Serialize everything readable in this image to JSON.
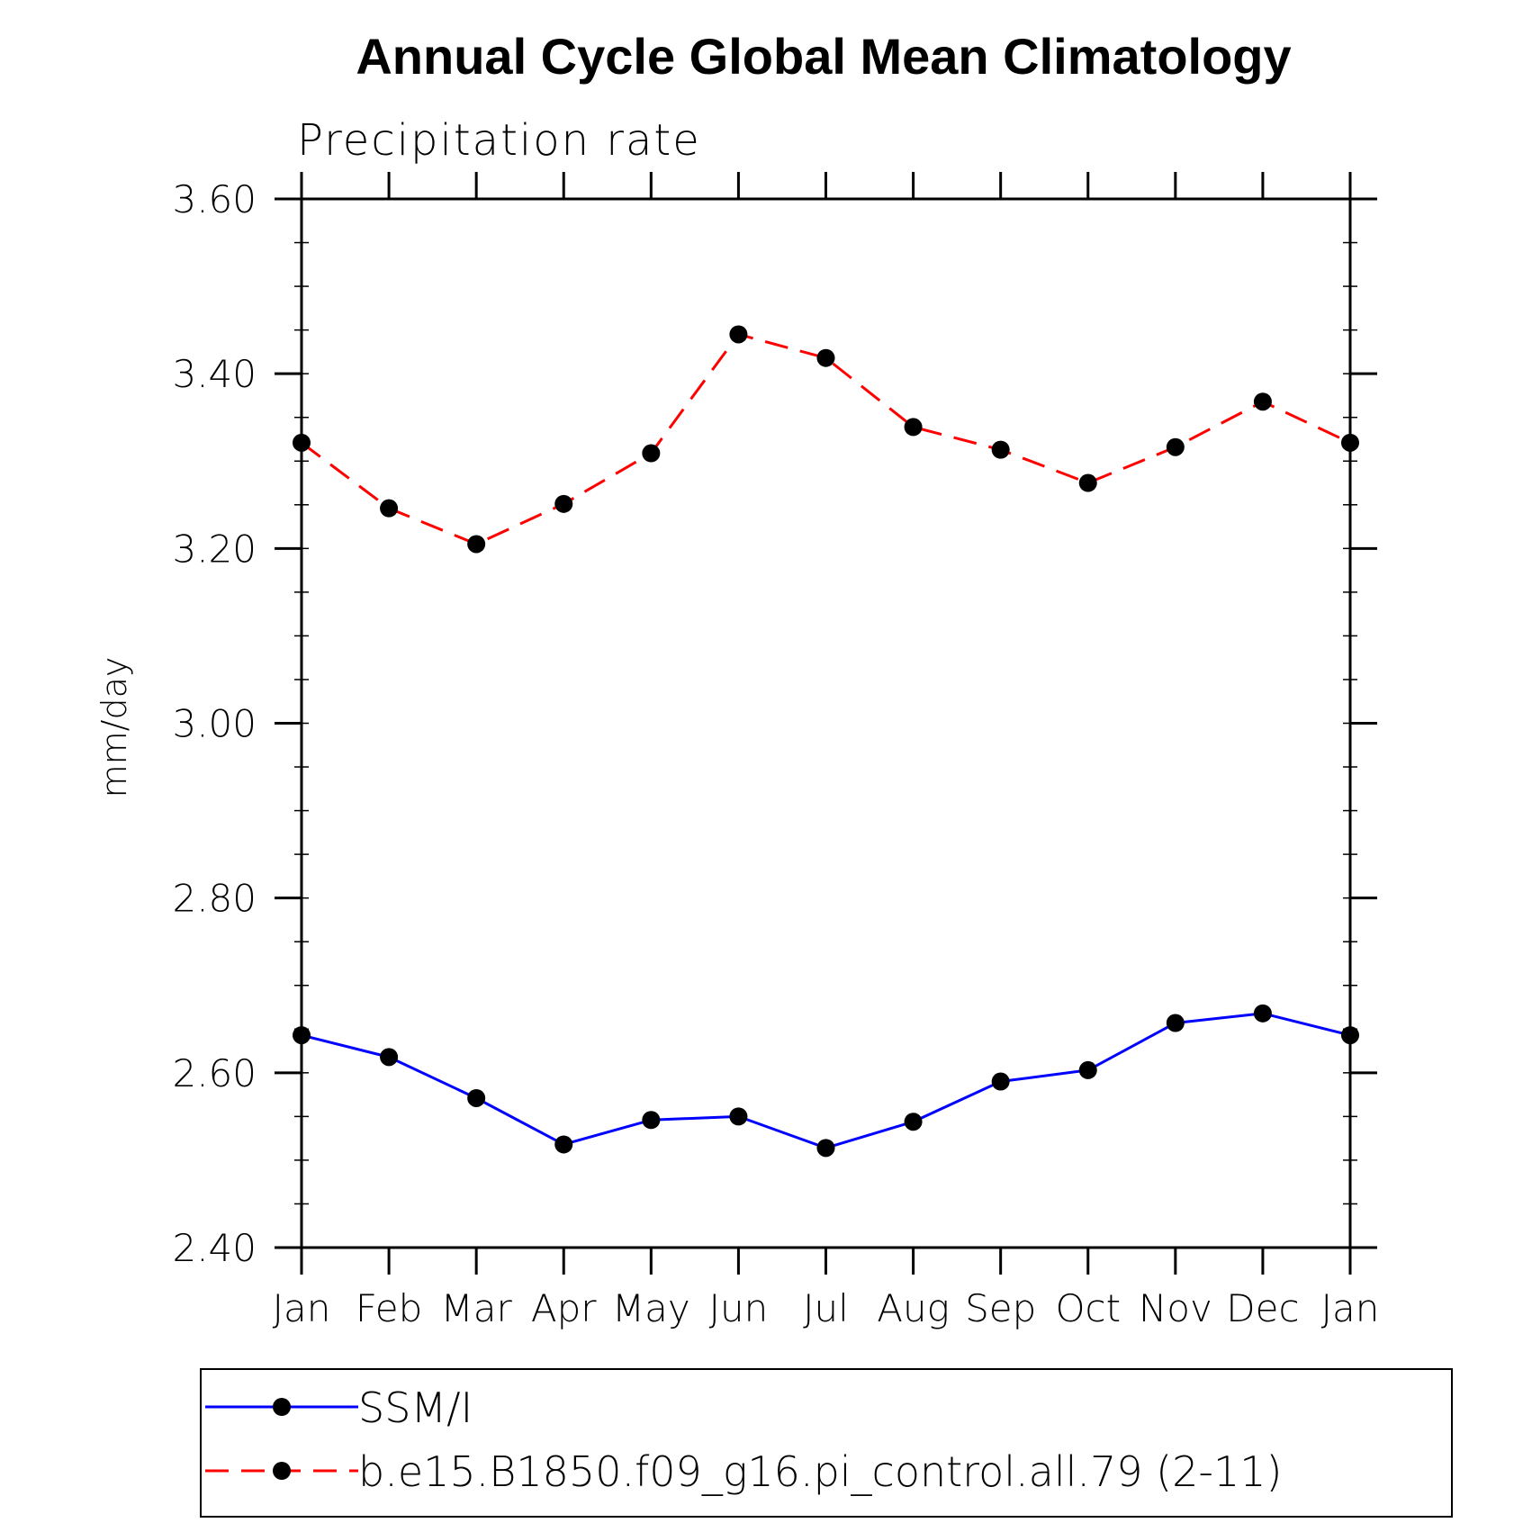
{
  "chart_data": {
    "type": "line",
    "title": "Annual Cycle Global Mean Climatology",
    "subtitle": "Precipitation rate",
    "ylabel": "mm/day",
    "xlabel": "",
    "categories": [
      "Jan",
      "Feb",
      "Mar",
      "Apr",
      "May",
      "Jun",
      "Jul",
      "Aug",
      "Sep",
      "Oct",
      "Nov",
      "Dec",
      "Jan"
    ],
    "ylim": [
      2.4,
      3.6
    ],
    "yticks": [
      "2.40",
      "2.60",
      "2.80",
      "3.00",
      "3.20",
      "3.40",
      "3.60"
    ],
    "yminor_step": 0.05,
    "grid": false,
    "legend_position": "bottom",
    "series": [
      {
        "name": "SSM/I",
        "color": "#0000ff",
        "line_style": "solid",
        "marker": "filled-circle",
        "values": [
          2.643,
          2.618,
          2.571,
          2.518,
          2.546,
          2.55,
          2.514,
          2.544,
          2.59,
          2.603,
          2.657,
          2.668,
          2.643
        ]
      },
      {
        "name": "b.e15.B1850.f09_g16.pi_control.all.79 (2-11)",
        "color": "#ff0000",
        "line_style": "dashed",
        "marker": "filled-circle",
        "values": [
          3.321,
          3.246,
          3.205,
          3.251,
          3.309,
          3.445,
          3.418,
          3.339,
          3.313,
          3.275,
          3.316,
          3.368,
          3.321
        ]
      }
    ]
  }
}
